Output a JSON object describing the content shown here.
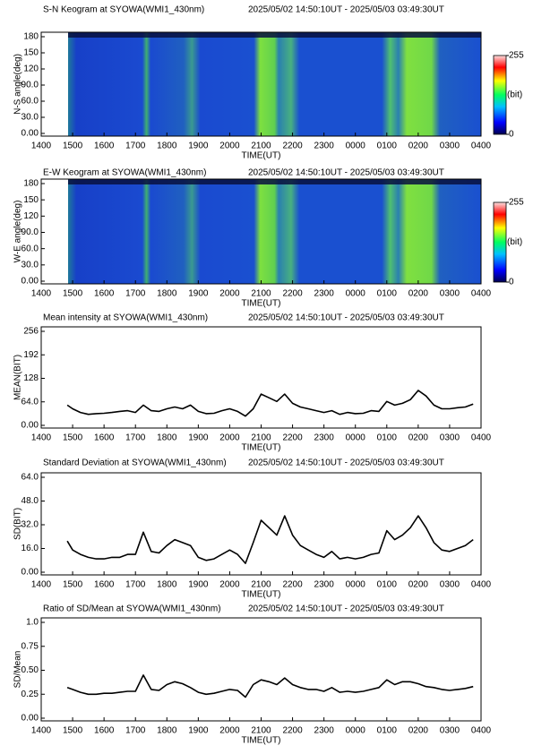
{
  "chart_data": [
    {
      "type": "heatmap",
      "title": "S-N Keogram at SYOWA(WMI1_430nm)",
      "subtitle": "2025/05/02 14:50:10UT - 2025/05/03 03:49:30UT",
      "xlabel": "TIME(UT)",
      "ylabel": "N-S angle(deg)",
      "xlim": [
        14,
        28
      ],
      "xticks": [
        {
          "value": 14,
          "label": "1400"
        },
        {
          "value": 15,
          "label": "1500"
        },
        {
          "value": 16,
          "label": "1600"
        },
        {
          "value": 17,
          "label": "1700"
        },
        {
          "value": 18,
          "label": "1800"
        },
        {
          "value": 19,
          "label": "1900"
        },
        {
          "value": 20,
          "label": "2000"
        },
        {
          "value": 21,
          "label": "2100"
        },
        {
          "value": 22,
          "label": "2200"
        },
        {
          "value": 23,
          "label": "2300"
        },
        {
          "value": 24,
          "label": "0000"
        },
        {
          "value": 25,
          "label": "0100"
        },
        {
          "value": 26,
          "label": "0200"
        },
        {
          "value": 27,
          "label": "0300"
        },
        {
          "value": 28,
          "label": "0400"
        }
      ],
      "ylim": [
        0,
        180
      ],
      "yticks": [
        {
          "value": 0,
          "label": "0.00"
        },
        {
          "value": 30,
          "label": "30.0"
        },
        {
          "value": 60,
          "label": "60.0"
        },
        {
          "value": 90,
          "label": "90.0"
        },
        120,
        150,
        180
      ],
      "colorbar": {
        "lim": [
          0,
          255
        ],
        "ticks": [
          0,
          255
        ],
        "label": "(bit)"
      }
    },
    {
      "type": "heatmap",
      "title": "E-W Keogram at SYOWA(WMI1_430nm)",
      "subtitle": "2025/05/02 14:50:10UT - 2025/05/03 03:49:30UT",
      "xlabel": "TIME(UT)",
      "ylabel": "W-E angle(deg)",
      "xlim": [
        14,
        28
      ],
      "xticks": [
        {
          "value": 14,
          "label": "1400"
        },
        {
          "value": 15,
          "label": "1500"
        },
        {
          "value": 16,
          "label": "1600"
        },
        {
          "value": 17,
          "label": "1700"
        },
        {
          "value": 18,
          "label": "1800"
        },
        {
          "value": 19,
          "label": "1900"
        },
        {
          "value": 20,
          "label": "2000"
        },
        {
          "value": 21,
          "label": "2100"
        },
        {
          "value": 22,
          "label": "2200"
        },
        {
          "value": 23,
          "label": "2300"
        },
        {
          "value": 24,
          "label": "0000"
        },
        {
          "value": 25,
          "label": "0100"
        },
        {
          "value": 26,
          "label": "0200"
        },
        {
          "value": 27,
          "label": "0300"
        },
        {
          "value": 28,
          "label": "0400"
        }
      ],
      "ylim": [
        0,
        180
      ],
      "yticks": [
        {
          "value": 0,
          "label": "0.00"
        },
        {
          "value": 30,
          "label": "30.0"
        },
        {
          "value": 60,
          "label": "60.0"
        },
        {
          "value": 90,
          "label": "90.0"
        },
        120,
        150,
        180
      ],
      "colorbar": {
        "lim": [
          0,
          255
        ],
        "ticks": [
          0,
          255
        ],
        "label": "(bit)"
      }
    },
    {
      "type": "line",
      "title": "Mean intensity at SYOWA(WMI1_430nm)",
      "subtitle": "2025/05/02 14:50:10UT - 2025/05/03 03:49:30UT",
      "xlabel": "TIME(UT)",
      "ylabel": "MEAN(BIT)",
      "xlim": [
        14,
        28
      ],
      "xticks": [
        {
          "value": 14,
          "label": "1400"
        },
        {
          "value": 15,
          "label": "1500"
        },
        {
          "value": 16,
          "label": "1600"
        },
        {
          "value": 17,
          "label": "1700"
        },
        {
          "value": 18,
          "label": "1800"
        },
        {
          "value": 19,
          "label": "1900"
        },
        {
          "value": 20,
          "label": "2000"
        },
        {
          "value": 21,
          "label": "2100"
        },
        {
          "value": 22,
          "label": "2200"
        },
        {
          "value": 23,
          "label": "2300"
        },
        {
          "value": 24,
          "label": "0000"
        },
        {
          "value": 25,
          "label": "0100"
        },
        {
          "value": 26,
          "label": "0200"
        },
        {
          "value": 27,
          "label": "0300"
        },
        {
          "value": 28,
          "label": "0400"
        }
      ],
      "ylim": [
        0,
        256
      ],
      "yticks": [
        {
          "value": 0,
          "label": "0.00"
        },
        {
          "value": 64,
          "label": "64.0"
        },
        128,
        192,
        256
      ],
      "x": [
        14.83,
        15,
        15.25,
        15.5,
        15.75,
        16,
        16.25,
        16.5,
        16.75,
        17,
        17.25,
        17.5,
        17.75,
        18,
        18.25,
        18.5,
        18.75,
        19,
        19.25,
        19.5,
        19.75,
        20,
        20.25,
        20.5,
        20.75,
        21,
        21.25,
        21.5,
        21.75,
        22,
        22.25,
        22.5,
        22.75,
        23,
        23.25,
        23.5,
        23.75,
        24,
        24.25,
        24.5,
        24.75,
        25,
        25.25,
        25.5,
        25.75,
        26,
        26.25,
        26.5,
        26.75,
        27,
        27.25,
        27.5,
        27.75
      ],
      "series": [
        {
          "color": "#000000",
          "values": [
            55,
            45,
            35,
            30,
            32,
            33,
            35,
            38,
            40,
            35,
            55,
            40,
            38,
            45,
            50,
            45,
            55,
            38,
            32,
            33,
            40,
            45,
            38,
            25,
            45,
            85,
            75,
            65,
            85,
            60,
            50,
            45,
            40,
            35,
            40,
            30,
            35,
            32,
            33,
            40,
            38,
            65,
            55,
            60,
            70,
            95,
            80,
            55,
            45,
            45,
            48,
            50,
            58
          ]
        }
      ]
    },
    {
      "type": "line",
      "title": "Standard Deviation at SYOWA(WMI1_430nm)",
      "subtitle": "2025/05/02 14:50:10UT - 2025/05/03 03:49:30UT",
      "xlabel": "TIME(UT)",
      "ylabel": "SD(BIT)",
      "xlim": [
        14,
        28
      ],
      "xticks": [
        {
          "value": 14,
          "label": "1400"
        },
        {
          "value": 15,
          "label": "1500"
        },
        {
          "value": 16,
          "label": "1600"
        },
        {
          "value": 17,
          "label": "1700"
        },
        {
          "value": 18,
          "label": "1800"
        },
        {
          "value": 19,
          "label": "1900"
        },
        {
          "value": 20,
          "label": "2000"
        },
        {
          "value": 21,
          "label": "2100"
        },
        {
          "value": 22,
          "label": "2200"
        },
        {
          "value": 23,
          "label": "2300"
        },
        {
          "value": 24,
          "label": "0000"
        },
        {
          "value": 25,
          "label": "0100"
        },
        {
          "value": 26,
          "label": "0200"
        },
        {
          "value": 27,
          "label": "0300"
        },
        {
          "value": 28,
          "label": "0400"
        }
      ],
      "ylim": [
        0,
        64
      ],
      "yticks": [
        {
          "value": 0,
          "label": "0.00"
        },
        {
          "value": 16,
          "label": "16.0"
        },
        {
          "value": 32,
          "label": "32.0"
        },
        {
          "value": 48,
          "label": "48.0"
        },
        {
          "value": 64,
          "label": "64.0"
        }
      ],
      "x": [
        14.83,
        15,
        15.25,
        15.5,
        15.75,
        16,
        16.25,
        16.5,
        16.75,
        17,
        17.25,
        17.5,
        17.75,
        18,
        18.25,
        18.5,
        18.75,
        19,
        19.25,
        19.5,
        19.75,
        20,
        20.25,
        20.5,
        20.75,
        21,
        21.25,
        21.5,
        21.75,
        22,
        22.25,
        22.5,
        22.75,
        23,
        23.25,
        23.5,
        23.75,
        24,
        24.25,
        24.5,
        24.75,
        25,
        25.25,
        25.5,
        25.75,
        26,
        26.25,
        26.5,
        26.75,
        27,
        27.25,
        27.5,
        27.75
      ],
      "series": [
        {
          "color": "#000000",
          "values": [
            21,
            15,
            12,
            10,
            9,
            9,
            10,
            10,
            12,
            12,
            27,
            14,
            13,
            18,
            22,
            20,
            18,
            10,
            8,
            9,
            12,
            15,
            12,
            6,
            20,
            35,
            30,
            25,
            38,
            25,
            18,
            15,
            12,
            10,
            14,
            9,
            10,
            9,
            10,
            12,
            13,
            28,
            22,
            25,
            30,
            38,
            30,
            20,
            15,
            14,
            16,
            18,
            22
          ]
        }
      ]
    },
    {
      "type": "line",
      "title": "Ratio of SD/Mean at SYOWA(WMI1_430nm)",
      "subtitle": "2025/05/02 14:50:10UT - 2025/05/03 03:49:30UT",
      "xlabel": "TIME(UT)",
      "ylabel": "SD/Mean",
      "xlim": [
        14,
        28
      ],
      "xticks": [
        {
          "value": 14,
          "label": "1400"
        },
        {
          "value": 15,
          "label": "1500"
        },
        {
          "value": 16,
          "label": "1600"
        },
        {
          "value": 17,
          "label": "1700"
        },
        {
          "value": 18,
          "label": "1800"
        },
        {
          "value": 19,
          "label": "1900"
        },
        {
          "value": 20,
          "label": "2000"
        },
        {
          "value": 21,
          "label": "2100"
        },
        {
          "value": 22,
          "label": "2200"
        },
        {
          "value": 23,
          "label": "2300"
        },
        {
          "value": 24,
          "label": "0000"
        },
        {
          "value": 25,
          "label": "0100"
        },
        {
          "value": 26,
          "label": "0200"
        },
        {
          "value": 27,
          "label": "0300"
        },
        {
          "value": 28,
          "label": "0400"
        }
      ],
      "ylim": [
        0,
        1
      ],
      "yticks": [
        {
          "value": 0,
          "label": "0.00"
        },
        0.25,
        {
          "value": 0.5,
          "label": "0.50"
        },
        0.75,
        {
          "value": 1,
          "label": "1.0"
        }
      ],
      "x": [
        14.83,
        15,
        15.25,
        15.5,
        15.75,
        16,
        16.25,
        16.5,
        16.75,
        17,
        17.25,
        17.5,
        17.75,
        18,
        18.25,
        18.5,
        18.75,
        19,
        19.25,
        19.5,
        19.75,
        20,
        20.25,
        20.5,
        20.75,
        21,
        21.25,
        21.5,
        21.75,
        22,
        22.25,
        22.5,
        22.75,
        23,
        23.25,
        23.5,
        23.75,
        24,
        24.25,
        24.5,
        24.75,
        25,
        25.25,
        25.5,
        25.75,
        26,
        26.25,
        26.5,
        26.75,
        27,
        27.25,
        27.5,
        27.75
      ],
      "series": [
        {
          "color": "#000000",
          "values": [
            0.32,
            0.3,
            0.27,
            0.25,
            0.25,
            0.26,
            0.26,
            0.27,
            0.28,
            0.28,
            0.45,
            0.3,
            0.29,
            0.35,
            0.38,
            0.36,
            0.32,
            0.27,
            0.25,
            0.26,
            0.28,
            0.3,
            0.29,
            0.22,
            0.35,
            0.4,
            0.38,
            0.35,
            0.42,
            0.35,
            0.32,
            0.3,
            0.3,
            0.28,
            0.32,
            0.27,
            0.28,
            0.27,
            0.28,
            0.3,
            0.32,
            0.4,
            0.35,
            0.38,
            0.38,
            0.36,
            0.33,
            0.32,
            0.3,
            0.29,
            0.3,
            0.31,
            0.33
          ]
        }
      ]
    }
  ]
}
